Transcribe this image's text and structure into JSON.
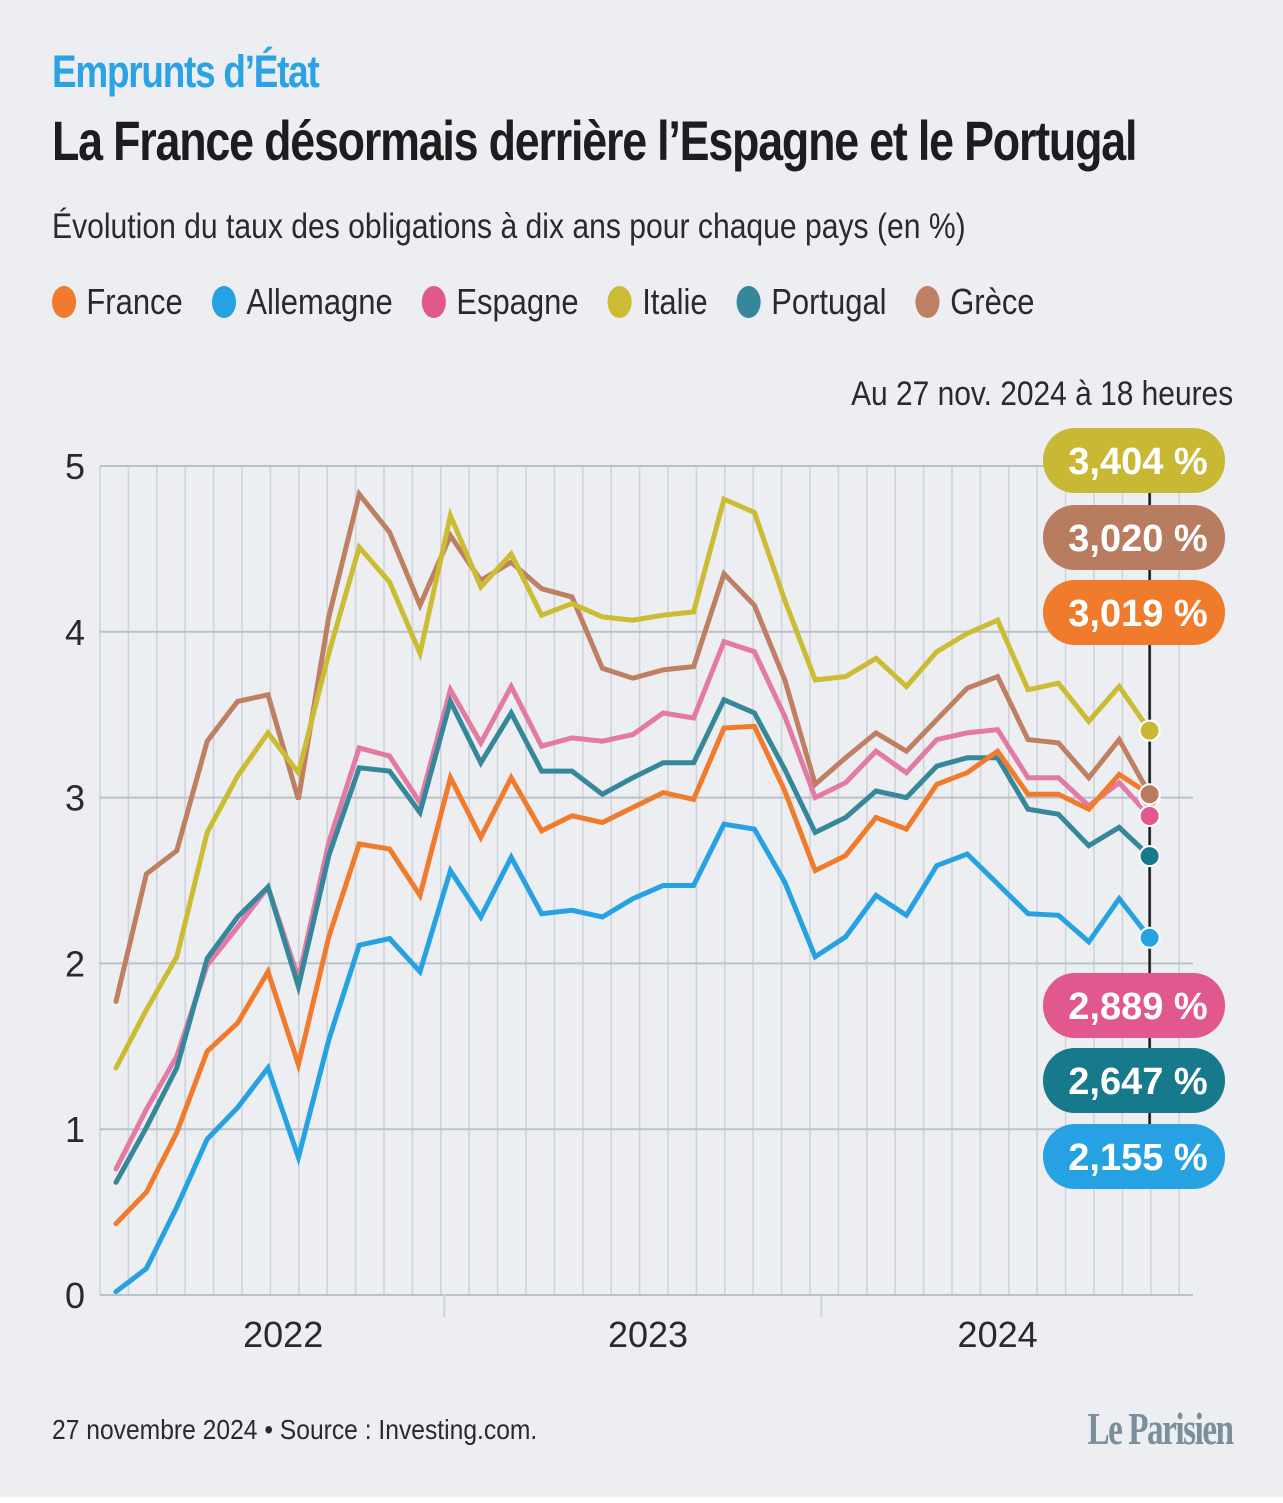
{
  "header": {
    "kicker": "Emprunts d’État",
    "title": "La France désormais derrière l’Espagne et le Portugal",
    "subtitle": "Évolution du taux des obligations à dix ans pour chaque pays (en %)"
  },
  "legend": [
    {
      "label": "France",
      "color": "#f07b2c"
    },
    {
      "label": "Allemagne",
      "color": "#26a1e2"
    },
    {
      "label": "Espagne",
      "color": "#e0588e"
    },
    {
      "label": "Italie",
      "color": "#cbbc34"
    },
    {
      "label": "Portugal",
      "color": "#35879a"
    },
    {
      "label": "Grèce",
      "color": "#bf7f62"
    }
  ],
  "as_of": "Au 27 nov. 2024 à 18 heures",
  "footer": {
    "source": "27 novembre 2024 • Source : Investing.com.",
    "logo": "Le Parisien"
  },
  "chart_data": {
    "type": "line",
    "title": "Évolution du taux des obligations à dix ans pour chaque pays (en %)",
    "xlabel": "",
    "ylabel": "%",
    "ylim": [
      0,
      5
    ],
    "yticks": [
      "0",
      "1",
      "2",
      "3",
      "4",
      "5"
    ],
    "xticks": [
      {
        "label": "2022",
        "at": 5.5
      },
      {
        "label": "2023",
        "at": 17.5
      },
      {
        "label": "2024",
        "at": 29.0
      }
    ],
    "year_boundaries": [
      10.8,
      23.2
    ],
    "grid": true,
    "legend_position": "top",
    "n_points": 35,
    "series": [
      {
        "name": "Grèce",
        "color": "#bf7f62",
        "label_color": "#b87c60",
        "end_label": "3,020 %",
        "values": [
          1.77,
          2.54,
          2.68,
          3.34,
          3.58,
          3.62,
          2.99,
          4.09,
          4.83,
          4.6,
          4.16,
          4.58,
          4.31,
          4.42,
          4.26,
          4.21,
          3.78,
          3.72,
          3.77,
          3.79,
          4.35,
          4.16,
          3.71,
          3.08,
          3.24,
          3.39,
          3.28,
          3.47,
          3.66,
          3.73,
          3.35,
          3.33,
          3.12,
          3.35,
          3.02
        ]
      },
      {
        "name": "Italie",
        "color": "#cbbc34",
        "label_color": "#c8b834",
        "end_label": "3,404 %",
        "values": [
          1.37,
          1.72,
          2.04,
          2.79,
          3.13,
          3.39,
          3.15,
          3.87,
          4.51,
          4.3,
          3.87,
          4.7,
          4.27,
          4.47,
          4.1,
          4.17,
          4.09,
          4.07,
          4.1,
          4.12,
          4.8,
          4.72,
          4.19,
          3.71,
          3.73,
          3.84,
          3.67,
          3.88,
          3.99,
          4.07,
          3.65,
          3.69,
          3.46,
          3.67,
          3.404
        ]
      },
      {
        "name": "Espagne",
        "color": "#e27aa3",
        "label_color": "#e0588e",
        "end_label": "2,889 %",
        "values": [
          0.76,
          1.12,
          1.44,
          1.99,
          2.22,
          2.46,
          1.91,
          2.73,
          3.3,
          3.25,
          2.97,
          3.65,
          3.33,
          3.67,
          3.31,
          3.36,
          3.34,
          3.38,
          3.51,
          3.48,
          3.94,
          3.88,
          3.49,
          3.0,
          3.09,
          3.28,
          3.15,
          3.35,
          3.39,
          3.41,
          3.12,
          3.12,
          2.95,
          3.09,
          2.889
        ]
      },
      {
        "name": "Portugal",
        "color": "#35879a",
        "label_color": "#17798c",
        "end_label": "2,647 %",
        "values": [
          0.68,
          1.01,
          1.37,
          2.03,
          2.28,
          2.46,
          1.86,
          2.65,
          3.18,
          3.16,
          2.91,
          3.58,
          3.21,
          3.51,
          3.16,
          3.16,
          3.02,
          3.12,
          3.21,
          3.21,
          3.59,
          3.51,
          3.17,
          2.79,
          2.88,
          3.04,
          3.0,
          3.19,
          3.24,
          3.24,
          2.93,
          2.9,
          2.71,
          2.82,
          2.647
        ]
      },
      {
        "name": "France",
        "color": "#f07b2c",
        "label_color": "#f07b2c",
        "end_label": "3,019 %",
        "values": [
          0.43,
          0.62,
          0.98,
          1.47,
          1.64,
          1.95,
          1.39,
          2.16,
          2.72,
          2.69,
          2.41,
          3.12,
          2.76,
          3.12,
          2.8,
          2.89,
          2.85,
          2.94,
          3.03,
          2.99,
          3.42,
          3.43,
          3.04,
          2.56,
          2.65,
          2.88,
          2.81,
          3.08,
          3.15,
          3.28,
          3.02,
          3.02,
          2.93,
          3.14,
          3.019
        ]
      },
      {
        "name": "Allemagne",
        "color": "#26a1e2",
        "label_color": "#26a1e2",
        "end_label": "2,155 %",
        "values": [
          0.02,
          0.16,
          0.53,
          0.94,
          1.13,
          1.37,
          0.83,
          1.54,
          2.11,
          2.15,
          1.95,
          2.56,
          2.28,
          2.64,
          2.3,
          2.32,
          2.28,
          2.39,
          2.47,
          2.47,
          2.84,
          2.81,
          2.49,
          2.04,
          2.16,
          2.41,
          2.29,
          2.59,
          2.66,
          2.48,
          2.3,
          2.29,
          2.13,
          2.39,
          2.155
        ]
      }
    ],
    "end_label_order_top": [
      "Italie",
      "Grèce",
      "France"
    ],
    "end_label_order_bottom": [
      "Espagne",
      "Portugal",
      "Allemagne"
    ]
  }
}
